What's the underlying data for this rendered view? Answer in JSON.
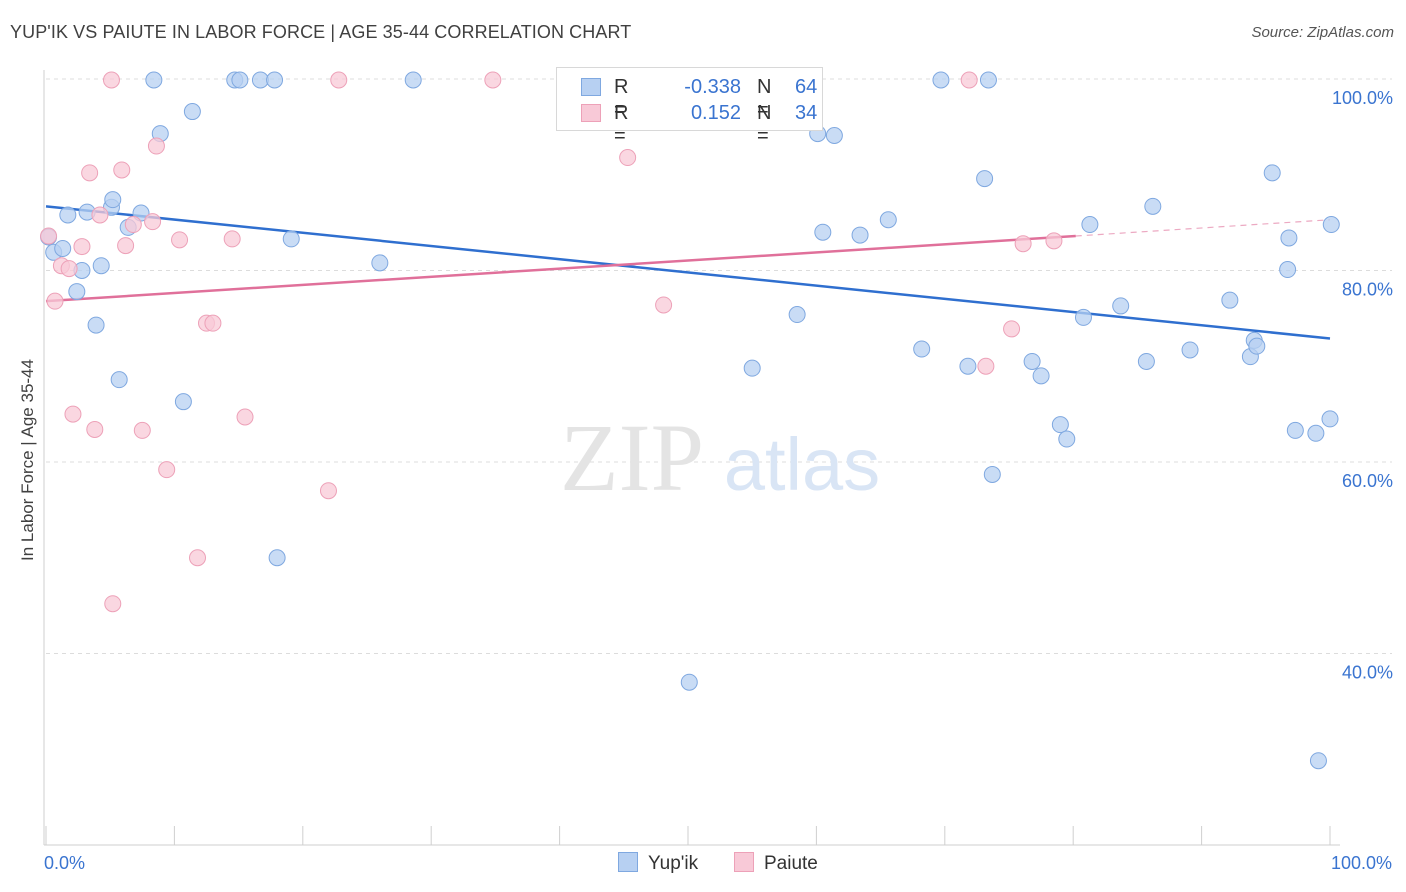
{
  "header": {
    "title": "YUP'IK VS PAIUTE IN LABOR FORCE | AGE 35-44 CORRELATION CHART",
    "source": "Source: ZipAtlas.com"
  },
  "legend": {
    "rows": [
      {
        "r_label": "R =",
        "r_value": "-0.338",
        "n_label": "N =",
        "n_value": "64"
      },
      {
        "r_label": "R =",
        "r_value": "0.152",
        "n_label": "N =",
        "n_value": "34"
      }
    ]
  },
  "bottom_legend": {
    "series1": "Yup'ik",
    "series2": "Paiute"
  },
  "watermark": {
    "zip": "ZIP",
    "atlas": "atlas"
  },
  "colors": {
    "yupik_fill": "#b7d0f2",
    "yupik_stroke": "#7fa8e0",
    "yupik_line": "#2f6fcf",
    "paiute_fill": "#f8c9d7",
    "paiute_stroke": "#eda1b8",
    "paiute_line": "#e0709a",
    "axis_text": "#3a74d0",
    "grid": "#dcdcdc"
  },
  "chart_data": {
    "type": "scatter",
    "title": "YUP'IK VS PAIUTE IN LABOR FORCE | AGE 35-44 CORRELATION CHART",
    "xlabel": "",
    "ylabel": "In Labor Force | Age 35-44",
    "xlim": [
      0,
      100
    ],
    "ylim": [
      22,
      103
    ],
    "x_tick_labels": [
      "0.0%",
      "100.0%"
    ],
    "y_ticks": [
      40,
      60,
      80,
      100
    ],
    "y_tick_labels": [
      "40.0%",
      "60.0%",
      "80.0%",
      "100.0%"
    ],
    "grid": true,
    "legend_position": "top-center",
    "series": [
      {
        "name": "Yup'ik",
        "r": -0.338,
        "n": 64,
        "trend": {
          "x": [
            0,
            100
          ],
          "y": [
            86.7,
            72.9
          ]
        },
        "points": [
          [
            0.2,
            83.5
          ],
          [
            0.6,
            81.9
          ],
          [
            1.3,
            82.3
          ],
          [
            1.7,
            85.8
          ],
          [
            2.4,
            77.8
          ],
          [
            2.8,
            80.0
          ],
          [
            3.2,
            86.1
          ],
          [
            3.9,
            74.3
          ],
          [
            4.3,
            80.5
          ],
          [
            5.1,
            86.6
          ],
          [
            5.2,
            87.4
          ],
          [
            5.7,
            68.6
          ],
          [
            6.4,
            84.5
          ],
          [
            7.4,
            86.0
          ],
          [
            8.4,
            100.0
          ],
          [
            8.9,
            94.3
          ],
          [
            10.7,
            66.3
          ],
          [
            11.4,
            96.6
          ],
          [
            14.7,
            100.0
          ],
          [
            15.1,
            100.0
          ],
          [
            16.7,
            100.0
          ],
          [
            17.8,
            100.0
          ],
          [
            18.0,
            50.0
          ],
          [
            19.1,
            83.3
          ],
          [
            26.0,
            80.8
          ],
          [
            28.6,
            100.0
          ],
          [
            41.2,
            100.0
          ],
          [
            50.1,
            37.0
          ],
          [
            55.0,
            69.8
          ],
          [
            58.5,
            75.4
          ],
          [
            59.2,
            100.0
          ],
          [
            60.1,
            94.3
          ],
          [
            60.5,
            84.0
          ],
          [
            61.4,
            94.1
          ],
          [
            63.4,
            83.7
          ],
          [
            65.6,
            85.3
          ],
          [
            69.7,
            100.0
          ],
          [
            68.2,
            71.8
          ],
          [
            71.8,
            70.0
          ],
          [
            73.4,
            100.0
          ],
          [
            73.1,
            89.6
          ],
          [
            73.7,
            58.7
          ],
          [
            76.8,
            70.5
          ],
          [
            77.5,
            69.0
          ],
          [
            79.0,
            63.9
          ],
          [
            79.5,
            62.4
          ],
          [
            80.8,
            75.1
          ],
          [
            81.3,
            84.8
          ],
          [
            83.7,
            76.3
          ],
          [
            85.7,
            70.5
          ],
          [
            86.2,
            86.7
          ],
          [
            89.1,
            71.7
          ],
          [
            92.2,
            76.9
          ],
          [
            93.8,
            71.0
          ],
          [
            94.1,
            72.7
          ],
          [
            94.3,
            72.1
          ],
          [
            95.5,
            90.2
          ],
          [
            96.7,
            80.1
          ],
          [
            96.8,
            83.4
          ],
          [
            97.3,
            63.3
          ],
          [
            98.9,
            63.0
          ],
          [
            99.1,
            28.8
          ],
          [
            100.0,
            64.5
          ],
          [
            100.1,
            84.8
          ]
        ]
      },
      {
        "name": "Paiute",
        "r": 0.152,
        "n": 34,
        "trend": {
          "x": [
            0,
            80.2,
            100
          ],
          "y": [
            76.8,
            83.6,
            85.3
          ]
        },
        "points": [
          [
            0.2,
            83.6
          ],
          [
            0.7,
            76.8
          ],
          [
            1.2,
            80.5
          ],
          [
            1.8,
            80.2
          ],
          [
            2.1,
            65.0
          ],
          [
            2.8,
            82.5
          ],
          [
            3.4,
            90.2
          ],
          [
            3.8,
            63.4
          ],
          [
            4.2,
            85.8
          ],
          [
            5.1,
            100.0
          ],
          [
            5.2,
            45.2
          ],
          [
            5.9,
            90.5
          ],
          [
            6.2,
            82.6
          ],
          [
            6.8,
            84.8
          ],
          [
            7.5,
            63.3
          ],
          [
            8.3,
            85.1
          ],
          [
            8.6,
            93.0
          ],
          [
            9.4,
            59.2
          ],
          [
            10.4,
            83.2
          ],
          [
            11.8,
            50.0
          ],
          [
            12.5,
            74.5
          ],
          [
            13.0,
            74.5
          ],
          [
            14.5,
            83.3
          ],
          [
            15.5,
            64.7
          ],
          [
            22.0,
            57.0
          ],
          [
            22.8,
            100.0
          ],
          [
            34.8,
            100.0
          ],
          [
            45.3,
            91.8
          ],
          [
            48.1,
            76.4
          ],
          [
            71.9,
            100.0
          ],
          [
            73.2,
            70.0
          ],
          [
            75.2,
            73.9
          ],
          [
            76.1,
            82.8
          ],
          [
            78.5,
            83.1
          ]
        ]
      }
    ]
  }
}
